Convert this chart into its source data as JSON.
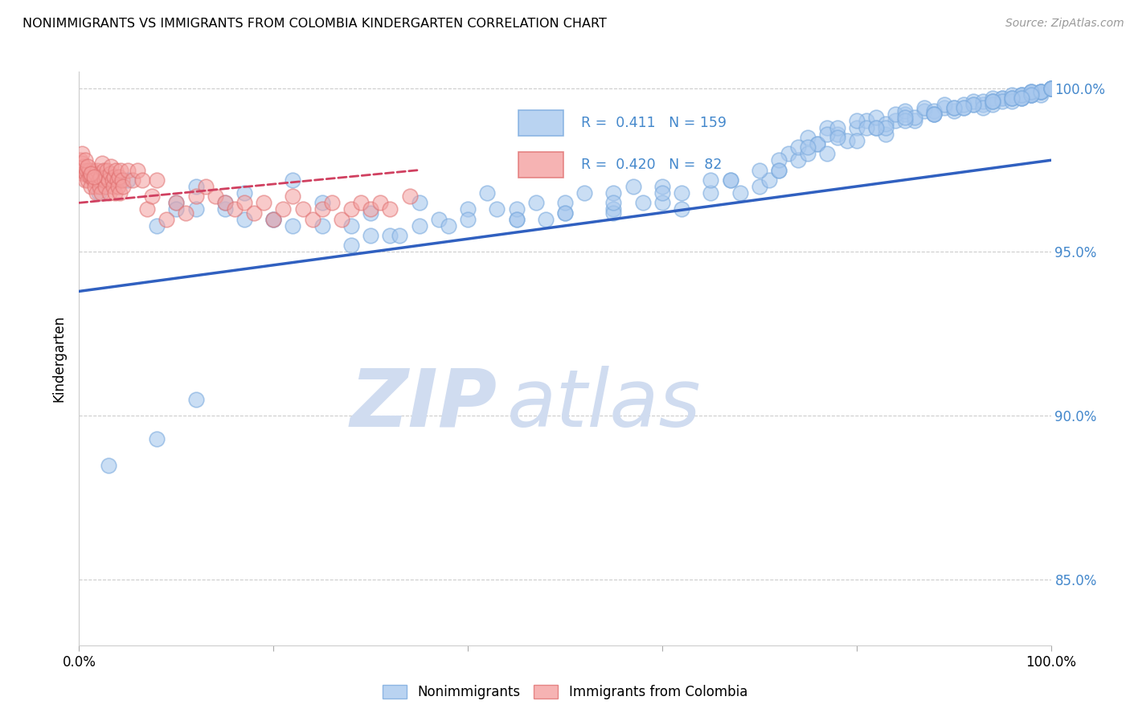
{
  "title": "NONIMMIGRANTS VS IMMIGRANTS FROM COLOMBIA KINDERGARTEN CORRELATION CHART",
  "source": "Source: ZipAtlas.com",
  "ylabel": "Kindergarten",
  "ytick_labels": [
    "85.0%",
    "90.0%",
    "95.0%",
    "100.0%"
  ],
  "ytick_values": [
    0.85,
    0.9,
    0.95,
    1.0
  ],
  "legend_blue_r": "0.411",
  "legend_blue_n": "159",
  "legend_pink_r": "0.420",
  "legend_pink_n": "82",
  "blue_color": "#A8C8EE",
  "pink_color": "#F4A0A0",
  "blue_line_color": "#3060C0",
  "pink_line_color": "#D04060",
  "watermark_zip": "ZIP",
  "watermark_atlas": "atlas",
  "watermark_color": "#D0DCF0",
  "background_color": "#FFFFFF",
  "grid_color": "#CCCCCC",
  "right_axis_color": "#4488CC",
  "legend_box_color": "#FFFFFF",
  "blue_scatter_x": [
    0.02,
    0.05,
    0.08,
    0.1,
    0.12,
    0.15,
    0.17,
    0.2,
    0.22,
    0.25,
    0.28,
    0.3,
    0.32,
    0.35,
    0.37,
    0.4,
    0.42,
    0.45,
    0.47,
    0.5,
    0.52,
    0.55,
    0.57,
    0.6,
    0.62,
    0.65,
    0.67,
    0.68,
    0.7,
    0.71,
    0.72,
    0.73,
    0.74,
    0.75,
    0.76,
    0.77,
    0.78,
    0.79,
    0.8,
    0.81,
    0.82,
    0.83,
    0.84,
    0.85,
    0.86,
    0.87,
    0.88,
    0.89,
    0.9,
    0.91,
    0.92,
    0.93,
    0.94,
    0.95,
    0.96,
    0.97,
    0.98,
    0.99,
    1.0,
    0.7,
    0.72,
    0.74,
    0.75,
    0.76,
    0.77,
    0.78,
    0.8,
    0.81,
    0.82,
    0.83,
    0.84,
    0.85,
    0.86,
    0.87,
    0.88,
    0.89,
    0.9,
    0.91,
    0.92,
    0.93,
    0.94,
    0.95,
    0.96,
    0.97,
    0.98,
    0.99,
    1.0,
    0.93,
    0.94,
    0.95,
    0.96,
    0.97,
    0.98,
    0.99,
    1.0,
    0.96,
    0.97,
    0.98,
    0.99,
    1.0,
    0.97,
    0.98,
    0.99,
    1.0,
    0.98,
    0.99,
    1.0,
    0.2,
    0.15,
    0.3,
    0.25,
    0.1,
    0.35,
    0.4,
    0.45,
    0.5,
    0.55,
    0.6,
    0.65,
    0.55,
    0.6,
    0.43,
    0.48,
    0.38,
    0.33,
    0.28,
    0.22,
    0.17,
    0.12,
    0.55,
    0.5,
    0.45,
    0.58,
    0.62,
    0.67,
    0.72,
    0.77,
    0.8,
    0.83,
    0.85,
    0.88,
    0.9,
    0.92,
    0.94,
    0.96,
    0.98,
    1.0,
    0.75,
    0.78,
    0.82,
    0.85,
    0.88,
    0.91,
    0.94,
    0.97,
    1.0,
    0.08,
    0.12,
    0.03
  ],
  "blue_scatter_y": [
    0.968,
    0.972,
    0.958,
    0.965,
    0.97,
    0.963,
    0.968,
    0.96,
    0.972,
    0.965,
    0.958,
    0.962,
    0.955,
    0.965,
    0.96,
    0.963,
    0.968,
    0.96,
    0.965,
    0.962,
    0.968,
    0.963,
    0.97,
    0.965,
    0.963,
    0.968,
    0.972,
    0.968,
    0.97,
    0.972,
    0.975,
    0.98,
    0.978,
    0.985,
    0.983,
    0.988,
    0.986,
    0.984,
    0.988,
    0.99,
    0.988,
    0.986,
    0.99,
    0.992,
    0.99,
    0.993,
    0.992,
    0.994,
    0.993,
    0.994,
    0.995,
    0.995,
    0.996,
    0.997,
    0.997,
    0.998,
    0.998,
    0.999,
    1.0,
    0.975,
    0.978,
    0.982,
    0.98,
    0.983,
    0.986,
    0.988,
    0.99,
    0.988,
    0.991,
    0.989,
    0.992,
    0.993,
    0.991,
    0.994,
    0.993,
    0.995,
    0.994,
    0.995,
    0.996,
    0.996,
    0.997,
    0.997,
    0.998,
    0.998,
    0.999,
    0.999,
    1.0,
    0.994,
    0.995,
    0.996,
    0.996,
    0.997,
    0.998,
    0.998,
    1.0,
    0.997,
    0.997,
    0.998,
    0.999,
    1.0,
    0.998,
    0.999,
    0.999,
    1.0,
    0.999,
    0.999,
    1.0,
    0.96,
    0.965,
    0.955,
    0.958,
    0.963,
    0.958,
    0.96,
    0.963,
    0.965,
    0.968,
    0.97,
    0.972,
    0.962,
    0.968,
    0.963,
    0.96,
    0.958,
    0.955,
    0.952,
    0.958,
    0.96,
    0.963,
    0.965,
    0.962,
    0.96,
    0.965,
    0.968,
    0.972,
    0.975,
    0.98,
    0.984,
    0.988,
    0.99,
    0.992,
    0.994,
    0.995,
    0.996,
    0.997,
    0.998,
    1.0,
    0.982,
    0.985,
    0.988,
    0.991,
    0.992,
    0.994,
    0.996,
    0.997,
    1.0,
    0.893,
    0.905,
    0.885
  ],
  "pink_scatter_x": [
    0.001,
    0.002,
    0.003,
    0.004,
    0.005,
    0.006,
    0.007,
    0.008,
    0.009,
    0.01,
    0.011,
    0.012,
    0.013,
    0.014,
    0.015,
    0.016,
    0.017,
    0.018,
    0.019,
    0.02,
    0.021,
    0.022,
    0.023,
    0.024,
    0.025,
    0.026,
    0.027,
    0.028,
    0.029,
    0.03,
    0.031,
    0.032,
    0.033,
    0.034,
    0.035,
    0.036,
    0.037,
    0.038,
    0.039,
    0.04,
    0.041,
    0.042,
    0.043,
    0.044,
    0.045,
    0.05,
    0.055,
    0.06,
    0.065,
    0.07,
    0.075,
    0.08,
    0.09,
    0.1,
    0.11,
    0.12,
    0.13,
    0.14,
    0.15,
    0.16,
    0.17,
    0.18,
    0.19,
    0.2,
    0.21,
    0.22,
    0.23,
    0.24,
    0.25,
    0.26,
    0.27,
    0.28,
    0.29,
    0.3,
    0.31,
    0.32,
    0.34,
    0.003,
    0.006,
    0.009,
    0.012,
    0.015
  ],
  "pink_scatter_y": [
    0.978,
    0.975,
    0.977,
    0.974,
    0.976,
    0.972,
    0.974,
    0.975,
    0.972,
    0.975,
    0.973,
    0.97,
    0.973,
    0.975,
    0.972,
    0.97,
    0.974,
    0.968,
    0.975,
    0.972,
    0.97,
    0.973,
    0.968,
    0.977,
    0.975,
    0.972,
    0.97,
    0.973,
    0.975,
    0.972,
    0.968,
    0.974,
    0.976,
    0.972,
    0.97,
    0.973,
    0.968,
    0.975,
    0.972,
    0.97,
    0.973,
    0.968,
    0.975,
    0.972,
    0.97,
    0.975,
    0.972,
    0.975,
    0.972,
    0.963,
    0.967,
    0.972,
    0.96,
    0.965,
    0.962,
    0.967,
    0.97,
    0.967,
    0.965,
    0.963,
    0.965,
    0.962,
    0.965,
    0.96,
    0.963,
    0.967,
    0.963,
    0.96,
    0.963,
    0.965,
    0.96,
    0.963,
    0.965,
    0.963,
    0.965,
    0.963,
    0.967,
    0.98,
    0.978,
    0.976,
    0.974,
    0.973
  ],
  "blue_trend_x": [
    0.0,
    1.0
  ],
  "blue_trend_y": [
    0.938,
    0.978
  ],
  "pink_trend_x": [
    0.0,
    0.35
  ],
  "pink_trend_y": [
    0.965,
    0.975
  ],
  "xlim": [
    0.0,
    1.0
  ],
  "ylim": [
    0.83,
    1.005
  ]
}
